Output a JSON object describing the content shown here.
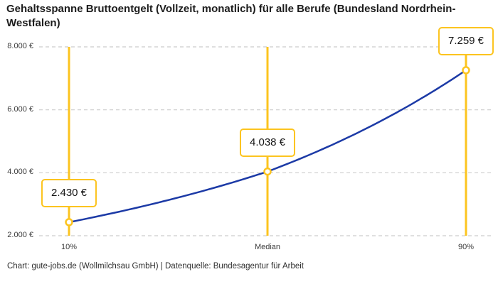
{
  "chart_data": {
    "type": "line",
    "title": "Gehaltsspanne Bruttoentgelt (Vollzeit, monatlich) für alle Berufe (Bundesland Nordrhein-Westfalen)",
    "caption": "Chart: gute-jobs.de (Wollmilchsau GmbH) | Datenquelle: Bundesagentur für Arbeit",
    "categories": [
      "10%",
      "Median",
      "90%"
    ],
    "values": [
      2430,
      4038,
      7259
    ],
    "value_labels": [
      "2.430 €",
      "4.038 €",
      "7.259 €"
    ],
    "xlabel": "",
    "ylabel": "",
    "ylim": [
      2000,
      8000
    ],
    "ytick_values": [
      2000,
      4000,
      6000,
      8000
    ],
    "ytick_labels": [
      "2.000 €",
      "4.000 €",
      "6.000 €",
      "8.000 €"
    ],
    "grid": "horizontal-dashed",
    "legend": "none",
    "interpolation": "smooth-exponential",
    "colors": {
      "line": "#1c3aa6",
      "accent": "#fcc41f",
      "grid": "#cccccc",
      "marker_fill": "#ffffff",
      "title_text": "#1c1c1c",
      "label_text": "#141414"
    }
  }
}
